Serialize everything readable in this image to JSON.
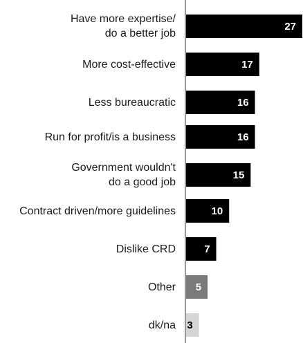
{
  "chart_data": {
    "type": "bar",
    "orientation": "horizontal",
    "categories": [
      "Have more expertise/\ndo a better job",
      "More cost-effective",
      "Less bureaucratic",
      "Run for profit/is a business",
      "Government wouldn't\ndo a good job",
      "Contract driven/more guidelines",
      "Dislike CRD",
      "Other",
      "dk/na"
    ],
    "values": [
      27,
      17,
      16,
      16,
      15,
      10,
      7,
      5,
      3
    ],
    "value_labels": [
      "27",
      "17",
      "16",
      "16",
      "15",
      "10",
      "7",
      "5",
      "3"
    ],
    "bar_colors": [
      "#000000",
      "#000000",
      "#000000",
      "#000000",
      "#000000",
      "#000000",
      "#000000",
      "#7a7a7a",
      "#d6d6d6"
    ],
    "value_label_colors": [
      "#ffffff",
      "#ffffff",
      "#ffffff",
      "#ffffff",
      "#ffffff",
      "#ffffff",
      "#ffffff",
      "#ffffff",
      "#000000"
    ],
    "xlim": [
      0,
      27
    ],
    "grid": false,
    "legend": "none"
  }
}
